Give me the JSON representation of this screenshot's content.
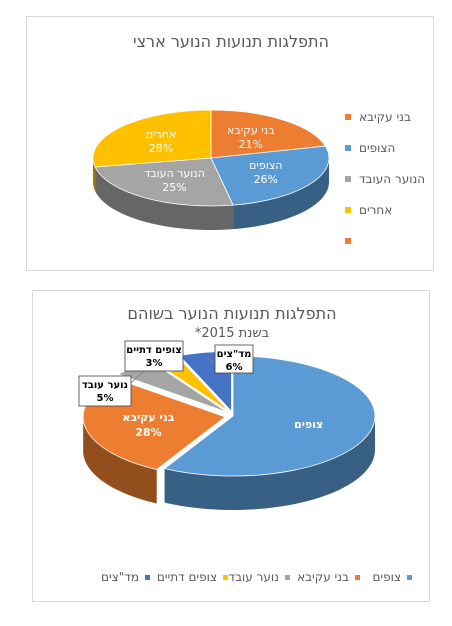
{
  "chart_data": [
    {
      "type": "pie",
      "title": "התפלגות תנועות הנוער ארצי",
      "subtitle": "",
      "categories": [
        "בני עקיבא",
        "הצופים",
        "הנוער העובד",
        "אחרים",
        ""
      ],
      "values": [
        21,
        26,
        25,
        28,
        0
      ],
      "value_labels": [
        "21%",
        "26%",
        "25%",
        "28%",
        ""
      ],
      "colors": [
        "#ED7D31",
        "#5B9BD5",
        "#A5A5A5",
        "#FFC000",
        "#ED7D31"
      ],
      "legend_position": "right"
    },
    {
      "type": "pie",
      "title": "התפלגות תנועות הנוער בשוהם",
      "subtitle": "*בשנת 2015",
      "categories": [
        "צופים",
        "בני עקיבא",
        "נוער עובד",
        "צופים דתיים",
        "מד\"צים"
      ],
      "values": [
        58,
        28,
        5,
        3,
        6
      ],
      "value_labels": [
        "",
        "28%",
        "5%",
        "3%",
        "6%"
      ],
      "colors": [
        "#5B9BD5",
        "#ED7D31",
        "#A5A5A5",
        "#FFC000",
        "#4472C4"
      ],
      "legend_position": "bottom"
    }
  ]
}
